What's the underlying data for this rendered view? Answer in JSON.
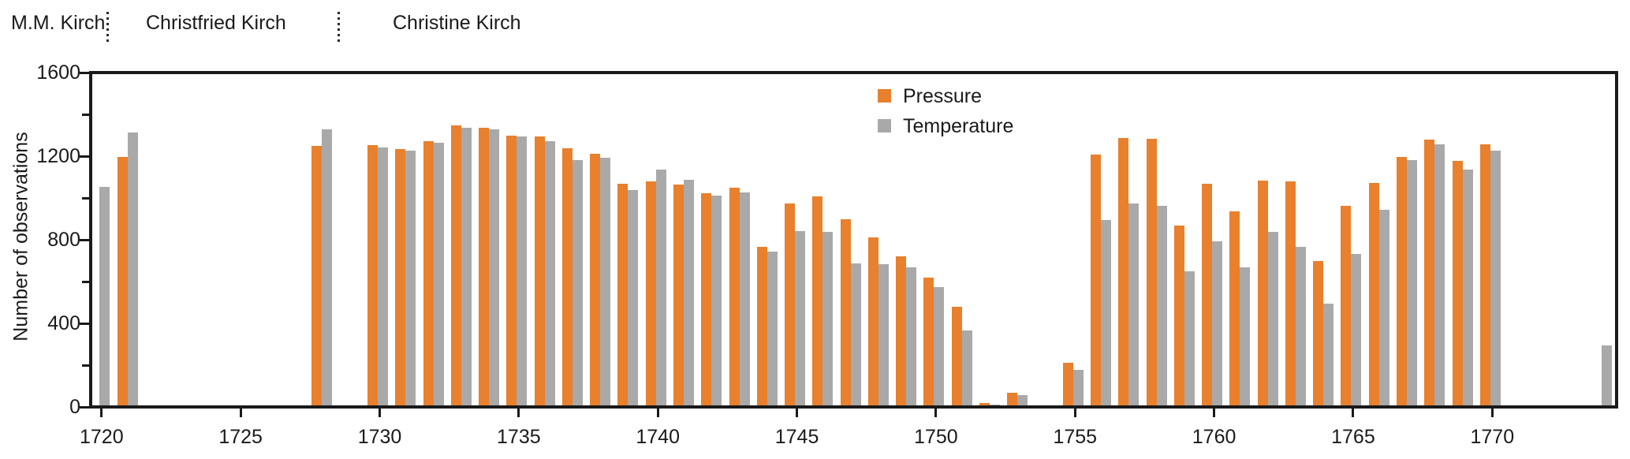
{
  "observers": {
    "labels": [
      "M.M. Kirch",
      "Christfried Kirch",
      "Christine Kirch"
    ]
  },
  "y_axis": {
    "title": "Number of observations",
    "major_ticks": [
      0,
      400,
      800,
      1200,
      1600
    ],
    "minor_ticks": [
      200,
      600,
      1000,
      1400
    ],
    "max": 1600
  },
  "x_axis": {
    "ticks": [
      1720,
      1725,
      1730,
      1735,
      1740,
      1745,
      1750,
      1755,
      1760,
      1765,
      1770
    ]
  },
  "legend": {
    "pressure_label": "Pressure",
    "temperature_label": "Temperature",
    "pressure_color": "#e8802d",
    "temperature_color": "#a9a9a9"
  },
  "chart_data": {
    "type": "bar",
    "title": "",
    "xlabel": "",
    "ylabel": "Number of observations",
    "ylim": [
      0,
      1600
    ],
    "grid": false,
    "legend_position": "upper middle",
    "series_names": [
      "Pressure",
      "Temperature"
    ],
    "years": [
      {
        "year": 1720,
        "pressure": null,
        "temperature": 1045
      },
      {
        "year": 1721,
        "pressure": 1190,
        "temperature": 1305
      },
      {
        "year": 1728,
        "pressure": 1240,
        "temperature": 1320
      },
      {
        "year": 1730,
        "pressure": 1245,
        "temperature": 1235
      },
      {
        "year": 1731,
        "pressure": 1225,
        "temperature": 1220
      },
      {
        "year": 1732,
        "pressure": 1265,
        "temperature": 1255
      },
      {
        "year": 1733,
        "pressure": 1340,
        "temperature": 1330
      },
      {
        "year": 1734,
        "pressure": 1330,
        "temperature": 1320
      },
      {
        "year": 1735,
        "pressure": 1290,
        "temperature": 1285
      },
      {
        "year": 1736,
        "pressure": 1285,
        "temperature": 1265
      },
      {
        "year": 1737,
        "pressure": 1230,
        "temperature": 1175
      },
      {
        "year": 1738,
        "pressure": 1205,
        "temperature": 1185
      },
      {
        "year": 1739,
        "pressure": 1060,
        "temperature": 1030
      },
      {
        "year": 1740,
        "pressure": 1070,
        "temperature": 1130
      },
      {
        "year": 1741,
        "pressure": 1055,
        "temperature": 1080
      },
      {
        "year": 1742,
        "pressure": 1015,
        "temperature": 1005
      },
      {
        "year": 1743,
        "pressure": 1040,
        "temperature": 1020
      },
      {
        "year": 1744,
        "pressure": 760,
        "temperature": 735
      },
      {
        "year": 1745,
        "pressure": 965,
        "temperature": 835
      },
      {
        "year": 1746,
        "pressure": 1000,
        "temperature": 830
      },
      {
        "year": 1747,
        "pressure": 890,
        "temperature": 680
      },
      {
        "year": 1748,
        "pressure": 805,
        "temperature": 675
      },
      {
        "year": 1749,
        "pressure": 715,
        "temperature": 660
      },
      {
        "year": 1750,
        "pressure": 610,
        "temperature": 565
      },
      {
        "year": 1751,
        "pressure": 470,
        "temperature": 360
      },
      {
        "year": 1752,
        "pressure": 10,
        "temperature": 5
      },
      {
        "year": 1753,
        "pressure": 60,
        "temperature": 50
      },
      {
        "year": 1755,
        "pressure": 205,
        "temperature": 170
      },
      {
        "year": 1756,
        "pressure": 1200,
        "temperature": 885
      },
      {
        "year": 1757,
        "pressure": 1280,
        "temperature": 965
      },
      {
        "year": 1758,
        "pressure": 1275,
        "temperature": 955
      },
      {
        "year": 1759,
        "pressure": 860,
        "temperature": 640
      },
      {
        "year": 1760,
        "pressure": 1060,
        "temperature": 785
      },
      {
        "year": 1761,
        "pressure": 930,
        "temperature": 660
      },
      {
        "year": 1762,
        "pressure": 1075,
        "temperature": 830
      },
      {
        "year": 1763,
        "pressure": 1070,
        "temperature": 760
      },
      {
        "year": 1764,
        "pressure": 690,
        "temperature": 485
      },
      {
        "year": 1765,
        "pressure": 955,
        "temperature": 725
      },
      {
        "year": 1766,
        "pressure": 1065,
        "temperature": 935
      },
      {
        "year": 1767,
        "pressure": 1190,
        "temperature": 1175
      },
      {
        "year": 1768,
        "pressure": 1270,
        "temperature": 1250
      },
      {
        "year": 1769,
        "pressure": 1170,
        "temperature": 1130
      },
      {
        "year": 1770,
        "pressure": 1250,
        "temperature": 1220
      },
      {
        "year": 1774,
        "pressure": null,
        "temperature": 285
      }
    ]
  }
}
